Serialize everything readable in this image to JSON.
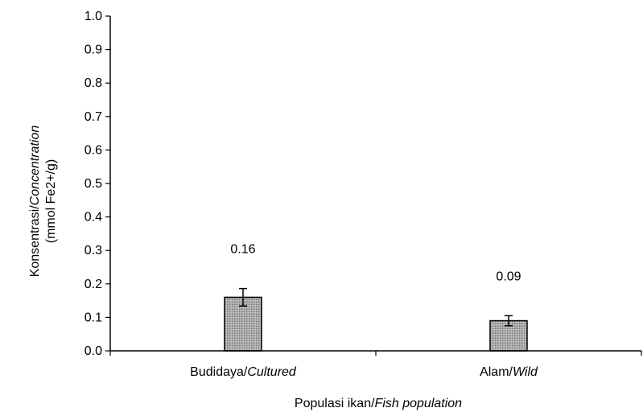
{
  "chart_data": {
    "type": "bar",
    "categories": [
      {
        "base": "Budidaya/",
        "italic": "Cultured"
      },
      {
        "base": "Alam/",
        "italic": "Wild"
      }
    ],
    "values": [
      0.16,
      0.09
    ],
    "errors": [
      0.026,
      0.015
    ],
    "data_labels": [
      "0.16",
      "0.09"
    ],
    "ylim": [
      0,
      1.0
    ],
    "yticks": [
      "0.0",
      "0.1",
      "0.2",
      "0.3",
      "0.4",
      "0.5",
      "0.6",
      "0.7",
      "0.8",
      "0.9",
      "1.0"
    ],
    "ylabel": {
      "line1_base": "Konsentrasi/",
      "line1_italic": "Concentration",
      "line2": "(mmol Fe2+/g)"
    },
    "xlabel": {
      "base": "Populasi ikan/",
      "italic": "Fish population"
    },
    "grid": false,
    "legend": "none",
    "bar_fill": "#a8a8a8",
    "bar_stroke": "#000000"
  }
}
